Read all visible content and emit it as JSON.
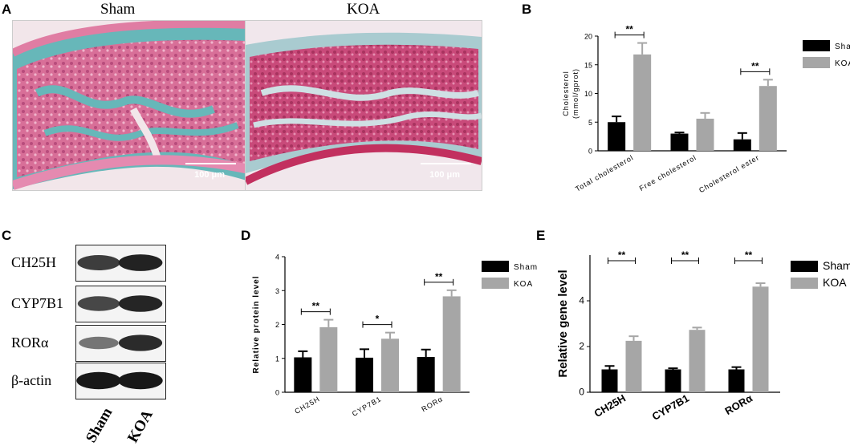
{
  "panels": {
    "A": {
      "letter": "A",
      "images": [
        {
          "title": "Sham",
          "scale_label": "100 μm",
          "tissue_colors": [
            "#d86f98",
            "#67b7b9",
            "#f2e6ea"
          ]
        },
        {
          "title": "KOA",
          "scale_label": "100 μm",
          "tissue_colors": [
            "#c94a7a",
            "#a9cbd0",
            "#f1e7ec"
          ]
        }
      ]
    },
    "C": {
      "letter": "C",
      "bands": [
        {
          "label": "CH25H",
          "sham_intensity": 0.75,
          "koa_intensity": 0.9
        },
        {
          "label": "CYP7B1",
          "sham_intensity": 0.7,
          "koa_intensity": 0.88
        },
        {
          "label": "RORα",
          "sham_intensity": 0.45,
          "koa_intensity": 0.85
        },
        {
          "label": "β-actin",
          "sham_intensity": 0.95,
          "koa_intensity": 0.95
        }
      ],
      "lanes": [
        "Sham",
        "KOA"
      ]
    }
  },
  "chart_data": [
    {
      "panel": "B",
      "type": "bar",
      "ylabel_lines": [
        "Cholesterol",
        "(mmol/gprot)"
      ],
      "ylim": [
        0,
        20
      ],
      "yticks": [
        0,
        5,
        10,
        15,
        20
      ],
      "categories": [
        "Total cholesterol",
        "Free cholesterol",
        "Cholesterol ester"
      ],
      "series": [
        {
          "name": "Sham",
          "color": "#000000",
          "values": [
            5.0,
            3.0,
            2.0
          ],
          "errors": [
            1.0,
            0.2,
            1.1
          ]
        },
        {
          "name": "KOA",
          "color": "#a6a6a6",
          "values": [
            16.8,
            5.6,
            11.3
          ],
          "errors": [
            2.0,
            1.0,
            1.1
          ]
        }
      ],
      "significance": [
        "**",
        "",
        "**"
      ],
      "legend": "right"
    },
    {
      "panel": "D",
      "type": "bar",
      "ylabel_lines": [
        "Relative protein level"
      ],
      "ylim": [
        0,
        4
      ],
      "yticks": [
        0,
        1,
        2,
        3,
        4
      ],
      "categories": [
        "CH25H",
        "CYP7B1",
        "RORα"
      ],
      "series": [
        {
          "name": "Sham",
          "color": "#000000",
          "values": [
            1.03,
            1.02,
            1.04
          ],
          "errors": [
            0.18,
            0.25,
            0.22
          ]
        },
        {
          "name": "KOA",
          "color": "#a6a6a6",
          "values": [
            1.92,
            1.58,
            2.83
          ],
          "errors": [
            0.22,
            0.18,
            0.18
          ]
        }
      ],
      "significance": [
        "**",
        "*",
        "**"
      ],
      "legend": "right"
    },
    {
      "panel": "E",
      "type": "bar",
      "ylabel_lines": [
        "Relative gene level"
      ],
      "ylim": [
        0,
        6
      ],
      "yticks": [
        0,
        2,
        4
      ],
      "categories": [
        "CH25H",
        "CYP7B1",
        "RORα"
      ],
      "series": [
        {
          "name": "Sham",
          "color": "#000000",
          "values": [
            1.0,
            1.0,
            1.0
          ],
          "errors": [
            0.15,
            0.05,
            0.1
          ]
        },
        {
          "name": "KOA",
          "color": "#a6a6a6",
          "values": [
            2.25,
            2.73,
            4.62
          ],
          "errors": [
            0.2,
            0.1,
            0.15
          ]
        }
      ],
      "significance": [
        "**",
        "**",
        "**"
      ],
      "legend": "right"
    }
  ]
}
